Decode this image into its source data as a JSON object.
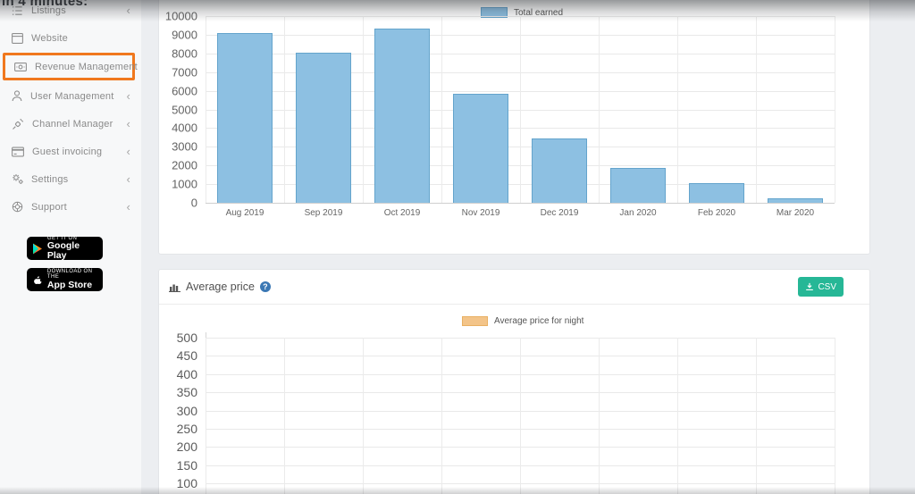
{
  "video_overlay": {
    "clipped_top_text": "in 4 minutes:"
  },
  "sidebar": {
    "chevron_glyph": "‹",
    "highlight_color": "#f0781e",
    "items": [
      {
        "label": "Listings",
        "icon": "list-icon",
        "chevron": true,
        "highlighted": false
      },
      {
        "label": "Website",
        "icon": "website-icon",
        "chevron": false,
        "highlighted": false
      },
      {
        "label": "Revenue Management",
        "icon": "revenue-icon",
        "chevron": false,
        "highlighted": true
      },
      {
        "label": "User Management",
        "icon": "user-icon",
        "chevron": true,
        "highlighted": false
      },
      {
        "label": "Channel Manager",
        "icon": "channel-manager-icon",
        "chevron": true,
        "highlighted": false
      },
      {
        "label": "Guest invoicing",
        "icon": "invoice-icon",
        "chevron": true,
        "highlighted": false
      },
      {
        "label": "Settings",
        "icon": "settings-icon",
        "chevron": true,
        "highlighted": false
      },
      {
        "label": "Support",
        "icon": "support-icon",
        "chevron": true,
        "highlighted": false
      }
    ],
    "store_badges": [
      {
        "store": "google-play",
        "line1": "GET IT ON",
        "line2": "Google Play"
      },
      {
        "store": "app-store",
        "line1": "Download on the",
        "line2": "App Store"
      }
    ]
  },
  "average_price_section": {
    "title": "Average price",
    "csv_button_label": "CSV"
  },
  "chart_data": [
    {
      "type": "bar",
      "name": "total-earned",
      "legend": [
        {
          "label": "Total earned",
          "color": "#8dc0e2",
          "border_color": "#64a4cc"
        }
      ],
      "legend_position": "top",
      "categories": [
        "Aug 2019",
        "Sep 2019",
        "Oct 2019",
        "Nov 2019",
        "Dec 2019",
        "Jan 2020",
        "Feb 2020",
        "Mar 2020"
      ],
      "values": [
        9100,
        8050,
        9350,
        5850,
        3450,
        1850,
        1050,
        250
      ],
      "ylim": [
        0,
        10000
      ],
      "ytick_step": 1000,
      "grid": true
    },
    {
      "type": "bar",
      "name": "average-price",
      "legend": [
        {
          "label": "Average price for night",
          "color": "#f3c489",
          "border_color": "#e9b063"
        }
      ],
      "legend_position": "top",
      "values": [],
      "visible_yticks": [
        500,
        450,
        400,
        350,
        300,
        250,
        200,
        150,
        100
      ],
      "ytick_step": 50,
      "columns": 8,
      "grid": true
    }
  ]
}
